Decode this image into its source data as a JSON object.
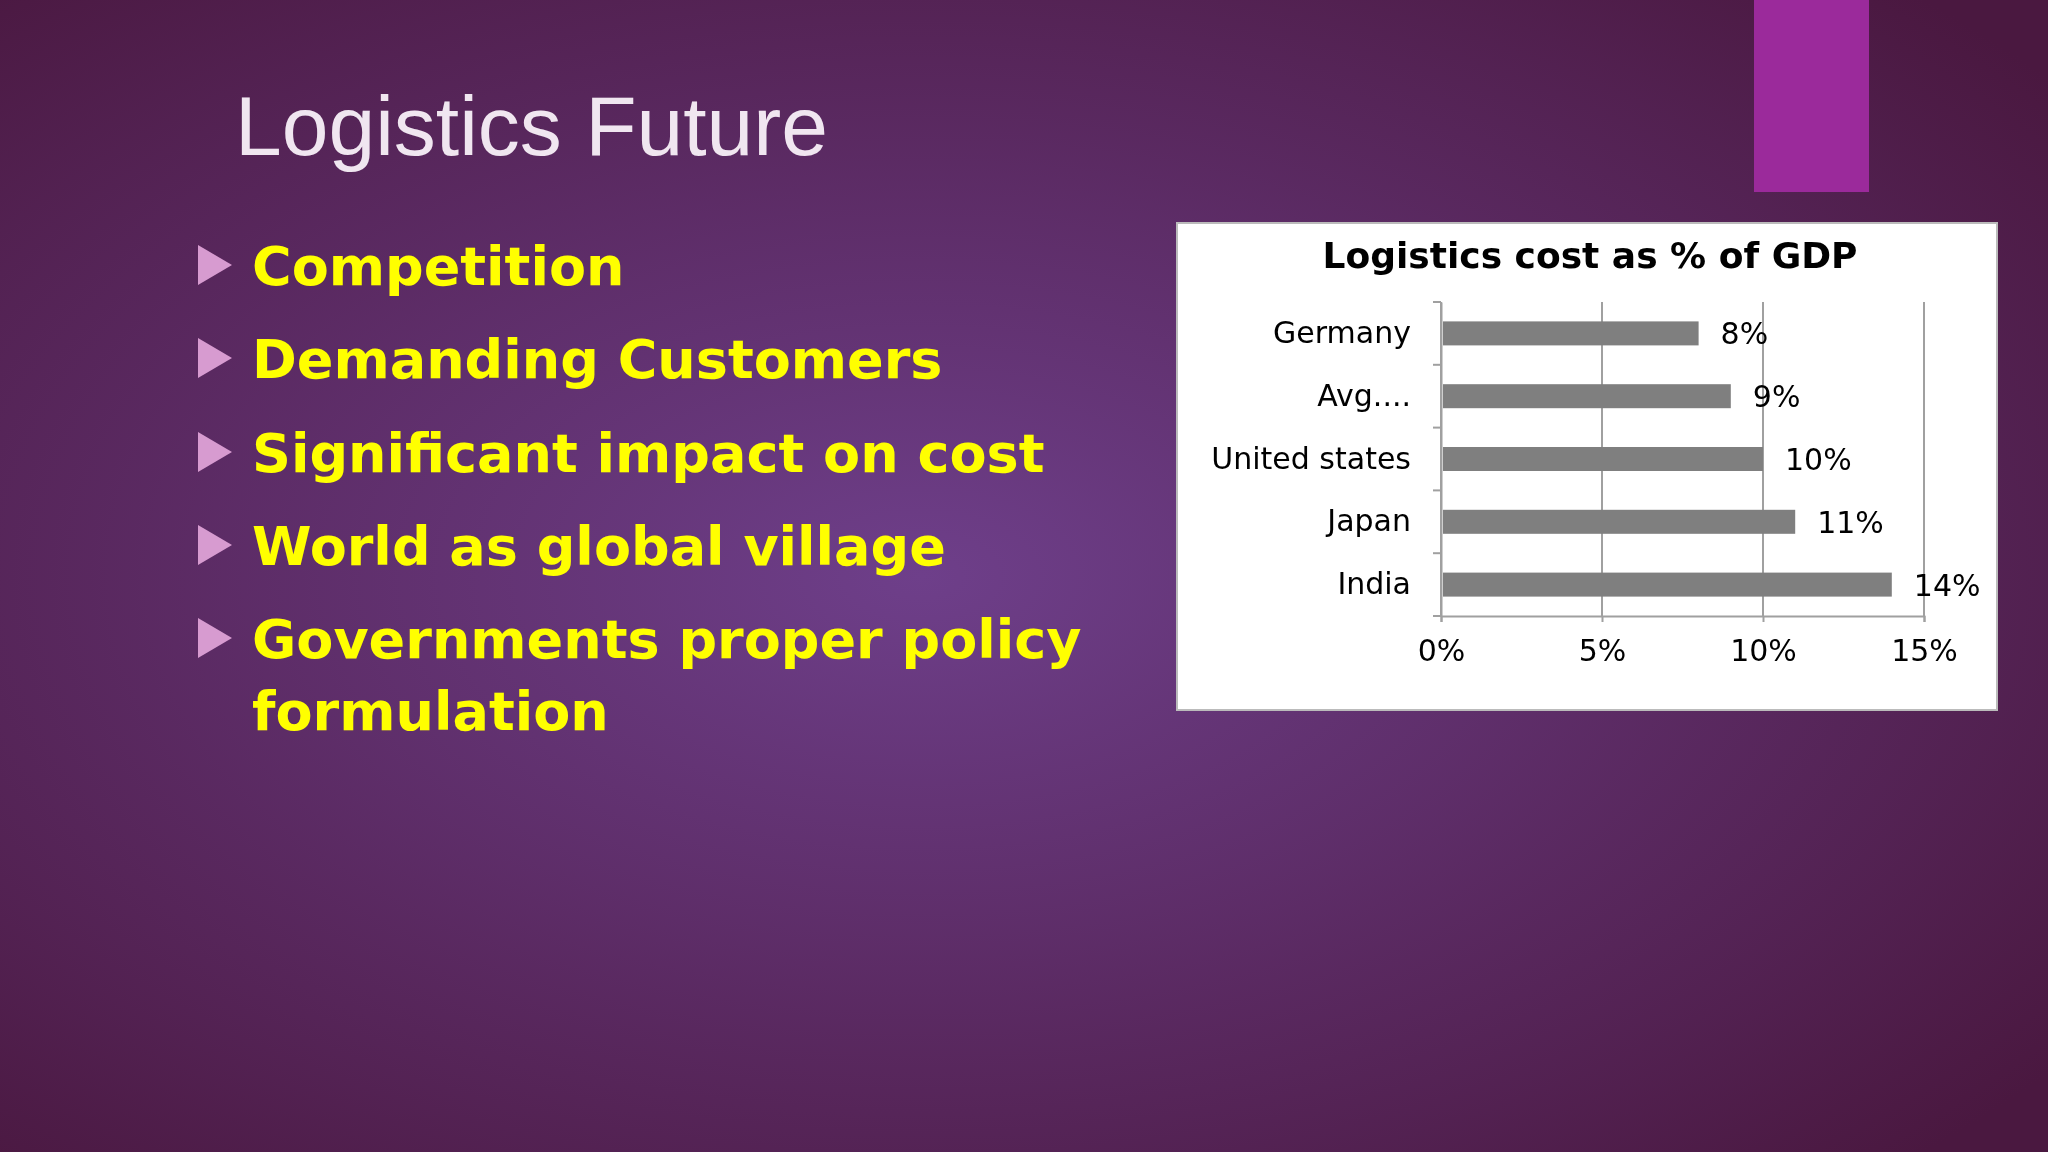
{
  "chart_data": {
    "type": "bar",
    "orientation": "horizontal",
    "title": "Logistics cost as % of GDP",
    "categories": [
      "Germany",
      "Avg....",
      "United states",
      "Japan",
      "India"
    ],
    "values": [
      8,
      9,
      10,
      11,
      14
    ],
    "value_labels": [
      "8%",
      "9%",
      "10%",
      "11%",
      "14%"
    ],
    "color": "#7f7f7f",
    "xlim": [
      0,
      15
    ],
    "xticks": [
      {
        "value": 0,
        "label": "0%"
      },
      {
        "value": 5,
        "label": "5%"
      },
      {
        "value": 10,
        "label": "10%"
      },
      {
        "value": 15,
        "label": "15%"
      }
    ],
    "grid": "x",
    "annotations": [
      "Logistics Future",
      "Competition",
      "Demanding Customers",
      "Significant impact on cost",
      "World as global village",
      "Governments proper policy formulation"
    ]
  }
}
